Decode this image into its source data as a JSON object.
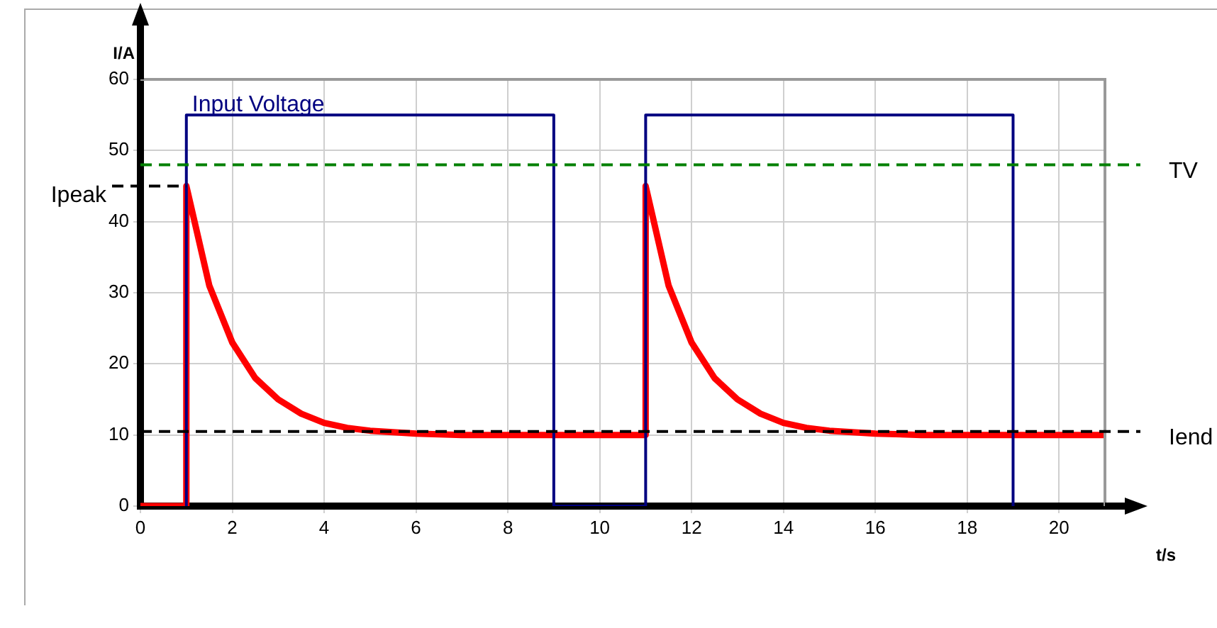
{
  "chart_data": {
    "type": "line",
    "xlabel": "t/s",
    "ylabel": "I/A",
    "xlim": [
      0,
      21
    ],
    "xticks": [
      0,
      2,
      4,
      6,
      8,
      10,
      12,
      14,
      16,
      18,
      20
    ],
    "ylim": [
      0,
      60
    ],
    "yticks": [
      0,
      10,
      20,
      30,
      40,
      50,
      60
    ],
    "grid": true,
    "legend": false,
    "marker": "none",
    "line_style": "solid",
    "series": [
      {
        "name": "Input Voltage",
        "color": "#000080",
        "x": [
          1,
          1,
          9,
          9,
          11,
          11,
          19,
          19
        ],
        "values": [
          0,
          55,
          55,
          0,
          0,
          55,
          55,
          0
        ]
      },
      {
        "color": "#ff0000",
        "x": [
          0,
          1,
          1,
          1.5,
          2,
          2.5,
          3,
          3.5,
          4,
          4.5,
          5,
          6,
          7,
          8,
          9,
          10,
          11,
          11,
          11.5,
          12,
          12.5,
          13,
          13.5,
          14,
          14.5,
          15,
          16,
          17,
          18,
          19,
          20,
          21
        ],
        "values": [
          0,
          0,
          45,
          31,
          23,
          18,
          15,
          13,
          11.7,
          11,
          10.6,
          10.2,
          10,
          10,
          10,
          10,
          10,
          45,
          31,
          23,
          18,
          15,
          13,
          11.7,
          11,
          10.6,
          10.2,
          10,
          10,
          10,
          10,
          10
        ]
      }
    ],
    "ref_lines": [
      {
        "axis": "y",
        "value": 48,
        "label": "TV",
        "color": "#008000",
        "line_style": "dashed"
      },
      {
        "axis": "y",
        "value": 10.5,
        "label": "Iend",
        "color": "#000000",
        "line_style": "dashed"
      },
      {
        "axis": "y",
        "value": 45,
        "label": "Ipeak",
        "color": "#000000",
        "line_style": "dashed"
      }
    ]
  }
}
